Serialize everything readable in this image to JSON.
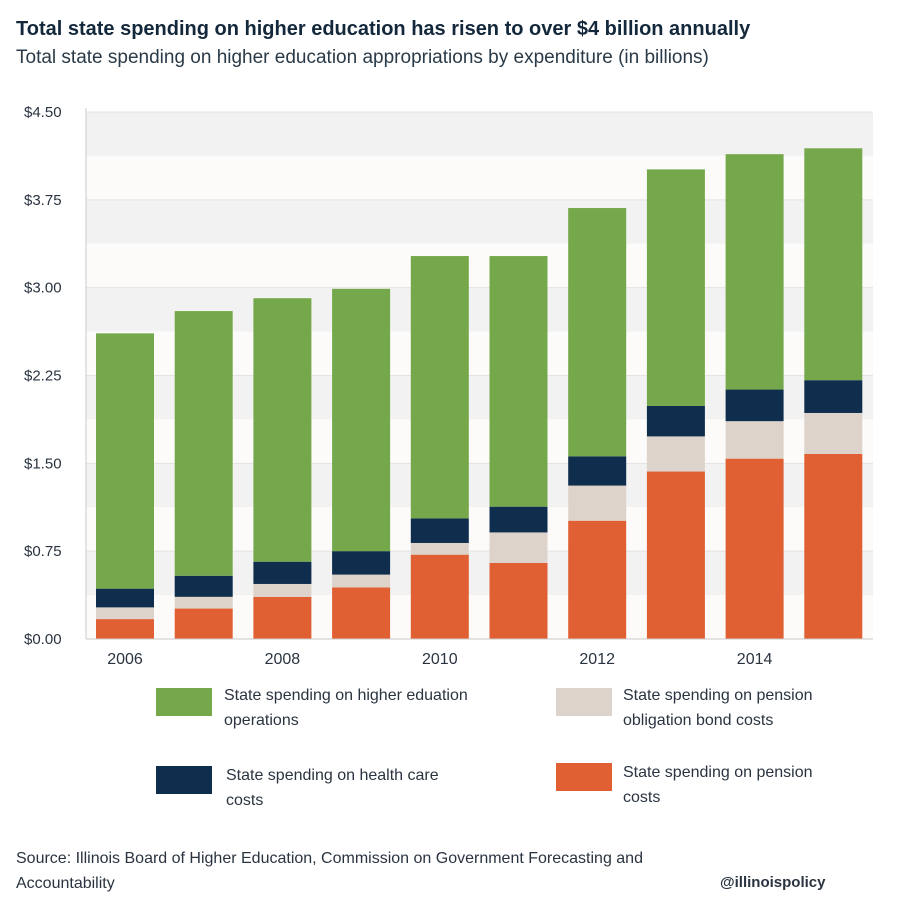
{
  "title": "Total state spending on higher education has risen to over $4 billion annually",
  "subtitle": "Total state spending on higher education appropriations by expenditure (in billions)",
  "chart_data": {
    "type": "bar",
    "stacked": true,
    "categories": [
      "2006",
      "2007",
      "2008",
      "2009",
      "2010",
      "2011",
      "2012",
      "2013",
      "2014",
      "2015"
    ],
    "x_tick_labels": [
      "2006",
      "",
      "2008",
      "",
      "2010",
      "",
      "2012",
      "",
      "2014",
      ""
    ],
    "ylim": [
      0,
      4.5
    ],
    "y_ticks": [
      0,
      0.75,
      1.5,
      2.25,
      3.0,
      3.75,
      4.5
    ],
    "y_tick_labels": [
      "$0.00",
      "$0.75",
      "$1.50",
      "$2.25",
      "$3.00",
      "$3.75",
      "$4.50"
    ],
    "series": [
      {
        "name": "State spending on pension costs",
        "color": "#e05f33",
        "values": [
          0.17,
          0.26,
          0.36,
          0.44,
          0.72,
          0.65,
          1.01,
          1.43,
          1.54,
          1.58
        ]
      },
      {
        "name": "State spending on pension obligation bond costs",
        "color": "#ddd3ca",
        "values": [
          0.1,
          0.1,
          0.11,
          0.11,
          0.1,
          0.26,
          0.3,
          0.3,
          0.32,
          0.35
        ]
      },
      {
        "name": "State spending on health care costs",
        "color": "#0f2d4d",
        "values": [
          0.16,
          0.18,
          0.19,
          0.2,
          0.21,
          0.22,
          0.25,
          0.26,
          0.27,
          0.28
        ]
      },
      {
        "name": "State spending on higher eduation operations",
        "color": "#74a84a",
        "values": [
          2.18,
          2.26,
          2.25,
          2.24,
          2.24,
          2.14,
          2.12,
          2.02,
          2.01,
          1.98
        ]
      }
    ],
    "legend_position": "bottom",
    "grid": "alternating bands"
  },
  "legend": [
    {
      "label": "State spending on higher eduation\noperations",
      "color": "#74a84a"
    },
    {
      "label": "State spending on pension\nobligation bond costs",
      "color": "#ddd3ca"
    },
    {
      "label": "State spending on health care\n costs",
      "color": "#0f2d4d"
    },
    {
      "label": "State spending on pension\ncosts",
      "color": "#e05f33"
    }
  ],
  "source": "Source: Illinois Board of Higher Education, Commission on Government Forecasting and Accountability",
  "handle": "@illinoispolicy"
}
